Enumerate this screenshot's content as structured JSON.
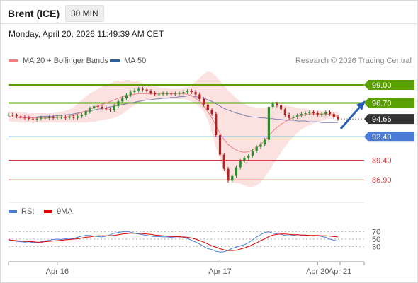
{
  "header": {
    "instrument": "Brent (ICE)",
    "timeframe": "30 MIN"
  },
  "timestamp": "Monday, April 20, 2026 11:49:39 AM CET",
  "legend_main": [
    {
      "label": "MA 20 + Bollinger Bands",
      "color": "#f08080"
    },
    {
      "label": "MA 50",
      "color": "#2e5f9e"
    }
  ],
  "copyright": "Research © 2026 Trading Central",
  "legend_rsi": [
    {
      "label": "RSI",
      "color": "#4a7cd6"
    },
    {
      "label": "9MA",
      "color": "#e00000"
    }
  ],
  "colors": {
    "resistance": "#5aa000",
    "support_blue": "#4a7cd6",
    "support_red": "#d04040",
    "up": "#2e8b2e",
    "down": "#b22222",
    "current": "#333333",
    "arrow": "#2a5fb0"
  },
  "chart_data": {
    "type": "candlestick",
    "ylim": [
      85.3,
      100.8
    ],
    "x_ticks": [
      "Apr 16",
      "Apr 17",
      "Apr 20",
      "Apr 21"
    ],
    "levels": [
      {
        "label": "99.00",
        "value": 99.0,
        "kind": "resistance"
      },
      {
        "label": "96.70",
        "value": 96.7,
        "kind": "resistance"
      },
      {
        "label": "94.66",
        "value": 94.66,
        "kind": "current"
      },
      {
        "label": "92.40",
        "value": 92.4,
        "kind": "support_blue"
      },
      {
        "label": "89.40",
        "value": 89.4,
        "kind": "support_red"
      },
      {
        "label": "86.90",
        "value": 86.9,
        "kind": "support_red"
      }
    ],
    "close_series": [
      95.2,
      95.1,
      95.0,
      94.9,
      94.8,
      94.7,
      94.6,
      94.7,
      94.8,
      94.8,
      94.9,
      94.8,
      94.9,
      94.9,
      94.8,
      94.9,
      94.8,
      95.0,
      95.2,
      95.6,
      96.0,
      96.3,
      96.2,
      96.1,
      95.9,
      95.8,
      96.3,
      96.9,
      97.3,
      97.7,
      98.1,
      98.3,
      98.5,
      98.4,
      98.2,
      98.0,
      97.8,
      97.8,
      97.9,
      97.9,
      97.8,
      97.9,
      98.0,
      98.1,
      98.2,
      98.1,
      97.8,
      97.2,
      96.5,
      95.8,
      95.3,
      92.6,
      90.1,
      88.3,
      86.8,
      87.4,
      88.5,
      89.3,
      89.7,
      90.0,
      90.6,
      91.1,
      91.4,
      92.0,
      96.2,
      96.6,
      96.4,
      95.9,
      95.2,
      94.8,
      94.9,
      95.1,
      95.3,
      95.4,
      95.5,
      95.4,
      95.2,
      95.3,
      95.5,
      95.3,
      94.9,
      94.66
    ],
    "ma20": [
      95.0,
      94.9,
      94.9,
      94.8,
      94.8,
      94.8,
      94.8,
      94.8,
      94.8,
      94.8,
      94.8,
      94.8,
      94.9,
      94.9,
      94.9,
      95.0,
      95.1,
      95.3,
      95.5,
      95.7,
      95.9,
      96.1,
      96.3,
      96.5,
      96.7,
      96.9,
      97.1,
      97.3,
      97.5,
      97.6,
      97.7,
      97.8,
      97.9,
      97.9,
      97.9,
      97.9,
      97.9,
      97.9,
      97.9,
      97.9,
      97.9,
      97.9,
      97.9,
      97.9,
      97.8,
      97.6,
      97.3,
      96.9,
      96.3,
      95.6,
      94.8,
      93.8,
      92.8,
      92.0,
      91.4,
      91.0,
      90.7,
      90.5,
      90.4,
      90.5,
      90.7,
      91.0,
      91.4,
      91.9,
      92.5,
      93.1,
      93.6,
      94.0,
      94.3,
      94.6,
      94.8,
      95.0,
      95.1,
      95.2,
      95.3,
      95.3,
      95.3,
      95.3,
      95.3,
      95.2,
      95.1,
      95.0
    ],
    "bb_upper": [
      95.7,
      95.6,
      95.6,
      95.5,
      95.5,
      95.4,
      95.4,
      95.4,
      95.4,
      95.4,
      95.4,
      95.4,
      95.5,
      95.6,
      95.7,
      95.9,
      96.2,
      96.6,
      97.1,
      97.5,
      97.9,
      98.2,
      98.5,
      98.8,
      99.0,
      99.2,
      99.4,
      99.5,
      99.6,
      99.6,
      99.6,
      99.5,
      99.4,
      99.2,
      99.0,
      98.9,
      98.8,
      98.7,
      98.6,
      98.6,
      98.5,
      98.5,
      98.5,
      98.6,
      98.7,
      99.0,
      99.4,
      99.9,
      100.4,
      100.7,
      100.6,
      100.1,
      99.5,
      98.9,
      98.3,
      97.8,
      97.3,
      96.9,
      96.6,
      96.3,
      96.2,
      96.1,
      96.1,
      96.1,
      96.2,
      96.3,
      96.4,
      96.4,
      96.4,
      96.3,
      96.2,
      96.1,
      96.0,
      96.0,
      95.9,
      95.8,
      95.8,
      95.7,
      95.7,
      95.7,
      95.6,
      95.6
    ],
    "bb_lower": [
      94.4,
      94.3,
      94.3,
      94.2,
      94.2,
      94.2,
      94.2,
      94.2,
      94.2,
      94.2,
      94.2,
      94.2,
      94.2,
      94.2,
      94.2,
      94.2,
      94.2,
      94.2,
      94.2,
      94.2,
      94.3,
      94.3,
      94.4,
      94.5,
      94.6,
      94.7,
      94.8,
      95.0,
      95.3,
      95.7,
      96.1,
      96.4,
      96.7,
      96.9,
      97.0,
      97.1,
      97.2,
      97.2,
      97.2,
      97.2,
      97.2,
      97.2,
      97.2,
      97.2,
      97.1,
      96.9,
      96.6,
      96.2,
      95.6,
      94.5,
      92.9,
      91.0,
      89.4,
      88.0,
      87.0,
      86.6,
      86.5,
      86.4,
      86.2,
      86.0,
      86.0,
      86.2,
      86.6,
      87.2,
      88.0,
      88.8,
      89.6,
      90.4,
      91.1,
      91.8,
      92.4,
      92.9,
      93.3,
      93.6,
      93.9,
      94.1,
      94.2,
      94.4,
      94.6,
      94.7,
      94.8,
      94.9
    ],
    "ma50": [
      94.9,
      94.9,
      94.9,
      94.9,
      94.9,
      94.9,
      94.9,
      94.9,
      95.0,
      95.0,
      95.0,
      95.0,
      95.1,
      95.1,
      95.2,
      95.2,
      95.3,
      95.4,
      95.5,
      95.6,
      95.7,
      95.8,
      95.9,
      96.0,
      96.1,
      96.2,
      96.3,
      96.4,
      96.5,
      96.6,
      96.7,
      96.8,
      96.9,
      97.0,
      97.1,
      97.1,
      97.2,
      97.2,
      97.3,
      97.3,
      97.4,
      97.4,
      97.5,
      97.5,
      97.6,
      97.6,
      97.5,
      97.4,
      97.3,
      97.1,
      96.9,
      96.6,
      96.3,
      96.0,
      95.8,
      95.6,
      95.4,
      95.3,
      95.1,
      95.0,
      94.9,
      94.9,
      94.8,
      94.8,
      94.7,
      94.7,
      94.6,
      94.6,
      94.5,
      94.5,
      94.5,
      94.4,
      94.4,
      94.4,
      94.3,
      94.3,
      94.3,
      94.2,
      94.2,
      94.2,
      94.2,
      94.2
    ],
    "rsi": {
      "ticks": [
        70,
        50,
        30
      ],
      "ylim": [
        0,
        100
      ],
      "rsi_values": [
        49,
        46,
        44,
        43,
        42,
        43,
        41,
        40,
        43,
        45,
        47,
        49,
        50,
        49,
        51,
        50,
        52,
        55,
        58,
        60,
        60,
        58,
        57,
        56,
        58,
        62,
        66,
        68,
        70,
        71,
        69,
        66,
        64,
        62,
        60,
        58,
        57,
        57,
        56,
        56,
        55,
        56,
        57,
        55,
        52,
        47,
        42,
        37,
        30,
        24,
        22,
        17,
        15,
        16,
        20,
        25,
        28,
        32,
        35,
        40,
        48,
        56,
        62,
        68,
        70,
        66,
        64,
        63,
        60,
        59,
        60,
        62,
        61,
        60,
        59,
        58,
        60,
        57,
        55,
        50,
        47,
        45
      ],
      "ma_values": [
        48,
        47,
        46,
        45,
        44,
        44,
        43,
        42,
        42,
        43,
        44,
        45,
        46,
        47,
        48,
        49,
        50,
        51,
        53,
        55,
        56,
        58,
        59,
        59,
        59,
        59,
        60,
        62,
        64,
        65,
        66,
        66,
        66,
        65,
        64,
        63,
        61,
        60,
        59,
        58,
        57,
        57,
        56,
        56,
        55,
        53,
        50,
        46,
        42,
        37,
        32,
        28,
        24,
        21,
        19,
        19,
        20,
        23,
        26,
        30,
        35,
        40,
        46,
        51,
        57,
        61,
        63,
        64,
        64,
        63,
        62,
        62,
        61,
        61,
        60,
        60,
        60,
        59,
        59,
        58,
        57,
        56
      ]
    }
  }
}
